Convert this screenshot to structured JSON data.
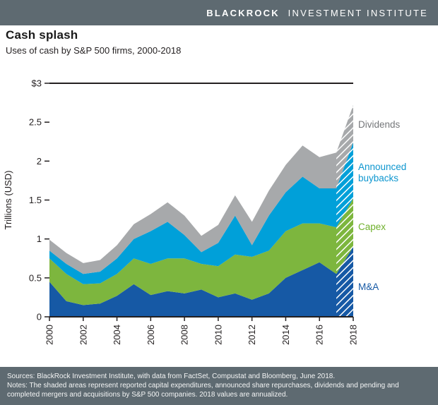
{
  "header": {
    "brand_bold": "BLACKROCK",
    "brand_light": "INVESTMENT INSTITUTE"
  },
  "title": "Cash splash",
  "subtitle": "Uses of cash by S&P 500 firms, 2000-2018",
  "colors": {
    "bar_bg": "#5e6a71",
    "axis": "#231f20",
    "hatch": "#ffffff"
  },
  "chart_data": {
    "type": "area",
    "stacked": true,
    "title": "Cash splash",
    "subtitle": "Uses of cash by S&P 500 firms, 2000-2018",
    "xlabel": "",
    "ylabel": "Trillions (USD)",
    "ylim": [
      0,
      3
    ],
    "x": [
      2000,
      2001,
      2002,
      2003,
      2004,
      2005,
      2006,
      2007,
      2008,
      2009,
      2010,
      2011,
      2012,
      2013,
      2014,
      2015,
      2016,
      2017,
      2018
    ],
    "series": [
      {
        "name": "M&A",
        "color": "#1659a5",
        "label_color": "#1659a5",
        "values": [
          0.45,
          0.2,
          0.15,
          0.17,
          0.27,
          0.42,
          0.28,
          0.33,
          0.3,
          0.35,
          0.25,
          0.3,
          0.22,
          0.3,
          0.5,
          0.6,
          0.7,
          0.55,
          0.9
        ]
      },
      {
        "name": "Capex",
        "color": "#7db63e",
        "label_color": "#6fb02c",
        "values": [
          0.3,
          0.35,
          0.27,
          0.26,
          0.28,
          0.33,
          0.4,
          0.42,
          0.45,
          0.33,
          0.4,
          0.5,
          0.55,
          0.55,
          0.6,
          0.6,
          0.5,
          0.6,
          0.62
        ]
      },
      {
        "name": "Announced buybacks",
        "color": "#00a0d9",
        "label_color": "#0d96cf",
        "values": [
          0.1,
          0.13,
          0.13,
          0.15,
          0.2,
          0.25,
          0.42,
          0.47,
          0.3,
          0.15,
          0.3,
          0.5,
          0.15,
          0.45,
          0.5,
          0.6,
          0.45,
          0.5,
          0.72
        ]
      },
      {
        "name": "Dividends",
        "color": "#a7a9ab",
        "label_color": "#75777a",
        "values": [
          0.14,
          0.14,
          0.14,
          0.15,
          0.17,
          0.19,
          0.22,
          0.25,
          0.25,
          0.21,
          0.23,
          0.26,
          0.3,
          0.32,
          0.35,
          0.4,
          0.4,
          0.46,
          0.48
        ]
      }
    ],
    "yticks": [
      {
        "v": 0,
        "label": "0"
      },
      {
        "v": 0.5,
        "label": "0.5"
      },
      {
        "v": 1,
        "label": "1"
      },
      {
        "v": 1.5,
        "label": "1.5"
      },
      {
        "v": 2,
        "label": "2"
      },
      {
        "v": 2.5,
        "label": "2.5"
      },
      {
        "v": 3,
        "label": "$3"
      }
    ],
    "xticks": [
      2000,
      2002,
      2004,
      2006,
      2008,
      2010,
      2012,
      2014,
      2016,
      2018
    ],
    "grid": false,
    "legend_position": "right",
    "last_segment_hatched": true,
    "hatch_note": "2018 values are annualized"
  },
  "footer": {
    "sources": "Sources: BlackRock Investment Institute, with data from FactSet, Compustat and Bloomberg, June 2018.",
    "notes": "Notes: The shaded areas represent reported capital expenditures, announced share repurchases, dividends and pending and completed mergers and acquisitions by S&P 500 companies. 2018 values are annualized."
  }
}
